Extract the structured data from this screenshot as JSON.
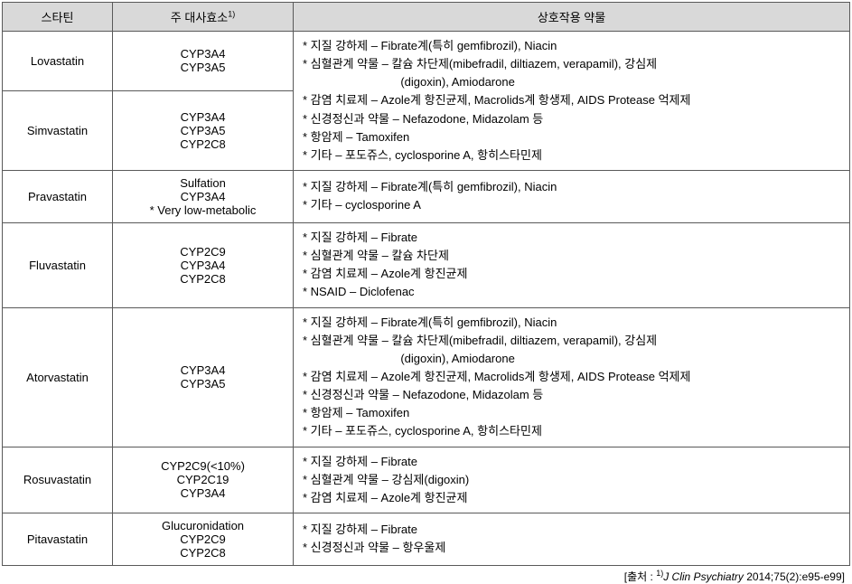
{
  "headers": {
    "statin": "스타틴",
    "enzyme": "주 대사효소",
    "enzyme_sup": "1)",
    "drugs": "상호작용 약물"
  },
  "columns": {
    "statin_width": 122,
    "enzyme_width": 200
  },
  "rows": [
    {
      "statin": "Lovastatin",
      "enzymes": [
        "CYP3A4",
        "CYP3A5"
      ],
      "drugs_merged": true
    },
    {
      "statin": "Simvastatin",
      "enzymes": [
        "CYP3A4",
        "CYP3A5",
        "CYP2C8"
      ],
      "drugs_lines": [
        "* 지질 강하제 – Fibrate계(특히 gemfibrozil), Niacin",
        "* 심혈관계 약물 – 칼슘 차단제(mibefradil, diltiazem, verapamil), 강심제",
        "                              (digoxin), Amiodarone",
        "* 감염 치료제 – Azole계 항진균제, Macrolids계 항생제, AIDS Protease 억제제",
        "* 신경정신과 약물 – Nefazodone, Midazolam 등",
        "* 항암제 – Tamoxifen",
        "* 기타 – 포도쥬스, cyclosporine A, 항히스타민제"
      ]
    },
    {
      "statin": "Pravastatin",
      "enzymes": [
        "Sulfation",
        "CYP3A4",
        "* Very low-metabolic"
      ],
      "drugs_lines": [
        "* 지질 강하제 – Fibrate계(특히 gemfibrozil), Niacin",
        "* 기타 – cyclosporine A"
      ]
    },
    {
      "statin": "Fluvastatin",
      "enzymes": [
        "CYP2C9",
        "CYP3A4",
        "CYP2C8"
      ],
      "drugs_lines": [
        "* 지질 강하제 – Fibrate",
        "* 심혈관계 약물 – 칼슘 차단제",
        "* 감염 치료제 – Azole계 항진균제",
        "* NSAID – Diclofenac"
      ]
    },
    {
      "statin": "Atorvastatin",
      "enzymes": [
        "CYP3A4",
        "CYP3A5"
      ],
      "drugs_lines": [
        "* 지질 강하제 – Fibrate계(특히 gemfibrozil), Niacin",
        "* 심혈관계 약물 – 칼슘 차단제(mibefradil, diltiazem, verapamil), 강심제",
        "                              (digoxin), Amiodarone",
        "* 감염 치료제 – Azole계 항진균제, Macrolids계 항생제, AIDS Protease 억제제",
        "* 신경정신과 약물 – Nefazodone, Midazolam 등",
        "* 항암제 – Tamoxifen",
        "* 기타 – 포도쥬스, cyclosporine A, 항히스타민제"
      ]
    },
    {
      "statin": "Rosuvastatin",
      "enzymes": [
        "CYP2C9(<10%)",
        "CYP2C19",
        "CYP3A4"
      ],
      "drugs_lines": [
        "* 지질 강하제 – Fibrate",
        "* 심혈관계 약물 – 강심제(digoxin)",
        "* 감염 치료제 – Azole계 항진균제"
      ]
    },
    {
      "statin": "Pitavastatin",
      "enzymes": [
        "Glucuronidation",
        "CYP2C9",
        "CYP2C8"
      ],
      "drugs_lines": [
        "* 지질 강하제 – Fibrate",
        "* 신경정신과 약물 – 항우울제"
      ]
    }
  ],
  "credit": {
    "prefix": "[출처 : ",
    "sup": "1)",
    "journal": "J Clin Psychiatry",
    "rest": " 2014;75(2):e95-e99]"
  }
}
